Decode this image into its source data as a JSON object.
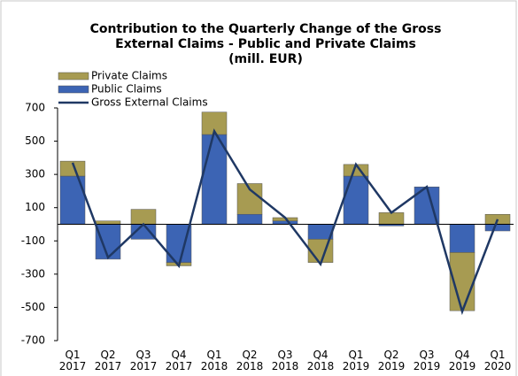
{
  "chart_data": {
    "type": "stacked_bar_line",
    "title": [
      "Contribution to the Quarterly Change of the Gross",
      "External Claims  - Public and Private Claims",
      "(mill. EUR)"
    ],
    "categories": [
      "Q1 2017",
      "Q2 2017",
      "Q3 2017",
      "Q4 2017",
      "Q1 2018",
      "Q2 2018",
      "Q3 2018",
      "Q4 2018",
      "Q1 2019",
      "Q2 2019",
      "Q3 2019",
      "Q4 2019",
      "Q1 2020"
    ],
    "series": [
      {
        "name": "Public Claims",
        "color": "#3c64b4",
        "kind": "bar",
        "values": [
          290,
          -210,
          -90,
          -230,
          540,
          60,
          20,
          -90,
          290,
          -10,
          225,
          -170,
          -40
        ]
      },
      {
        "name": "Private Claims",
        "color": "#a79b52",
        "kind": "bar",
        "values": [
          90,
          20,
          90,
          -20,
          135,
          185,
          20,
          -140,
          70,
          70,
          0,
          -350,
          60
        ]
      },
      {
        "name": "Gross External Claims",
        "color": "#1f3864",
        "kind": "line",
        "values": [
          370,
          -200,
          0,
          -250,
          560,
          210,
          40,
          -240,
          360,
          70,
          225,
          -525,
          30
        ]
      }
    ],
    "legend_order": [
      1,
      0,
      2
    ],
    "ylim": [
      -700,
      700
    ],
    "yticks": [
      -700,
      -500,
      -300,
      -100,
      100,
      300,
      500,
      700
    ]
  }
}
